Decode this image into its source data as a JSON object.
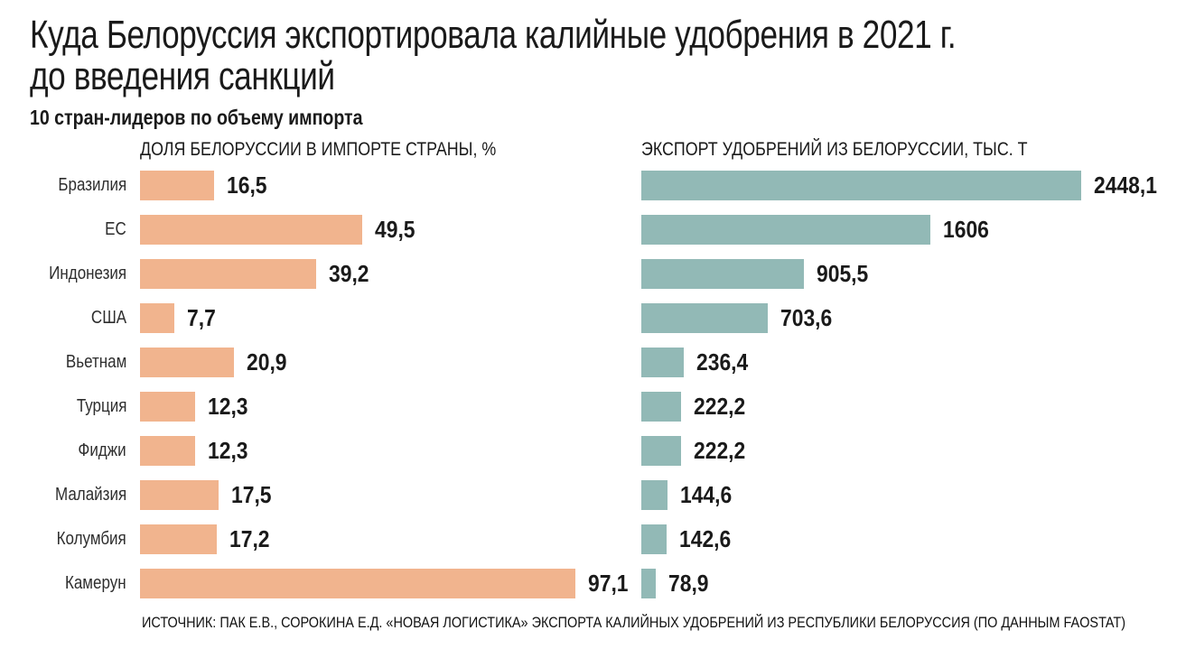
{
  "title": {
    "line1": "Куда Белоруссия экспортировала калийные удобрения в 2021 г.",
    "line2": "до введения санкций",
    "subtitle": "10 стран-лидеров по объему импорта"
  },
  "chart_data": {
    "type": "bar",
    "orientation": "horizontal",
    "grid": false,
    "legend_position": "none",
    "categories": [
      "Бразилия",
      "ЕС",
      "Индонезия",
      "США",
      "Вьетнам",
      "Турция",
      "Фиджи",
      "Малайзия",
      "Колумбия",
      "Камерун"
    ],
    "series": [
      {
        "name": "ДОЛЯ БЕЛОРУССИИ В ИМПОРТЕ СТРАНЫ, %",
        "color": "#f1b48e",
        "values": [
          16.5,
          49.5,
          39.2,
          7.7,
          20.9,
          12.3,
          12.3,
          17.5,
          17.2,
          97.1
        ],
        "labels": [
          "16,5",
          "49,5",
          "39,2",
          "7,7",
          "20,9",
          "12,3",
          "12,3",
          "17,5",
          "17,2",
          "97,1"
        ],
        "xlim": [
          0,
          97.1
        ]
      },
      {
        "name": "ЭКСПОРТ УДОБРЕНИЙ ИЗ БЕЛОРУССИИ, ТЫС. Т",
        "color": "#92b9b6",
        "values": [
          2448.1,
          1606,
          905.5,
          703.6,
          236.4,
          222.2,
          222.2,
          144.6,
          142.6,
          78.9
        ],
        "labels": [
          "2448,1",
          "1606",
          "905,5",
          "703,6",
          "236,4",
          "222,2",
          "222,2",
          "144,6",
          "142,6",
          "78,9"
        ],
        "xlim": [
          0,
          2448.1
        ]
      }
    ]
  },
  "source": "ИСТОЧНИК: ПАК Е.В., СОРОКИНА Е.Д. «НОВАЯ ЛОГИСТИКА» ЭКСПОРТА КАЛИЙНЫХ УДОБРЕНИЙ ИЗ РЕСПУБЛИКИ БЕЛОРУССИЯ (ПО ДАННЫМ FAOSTAT)"
}
